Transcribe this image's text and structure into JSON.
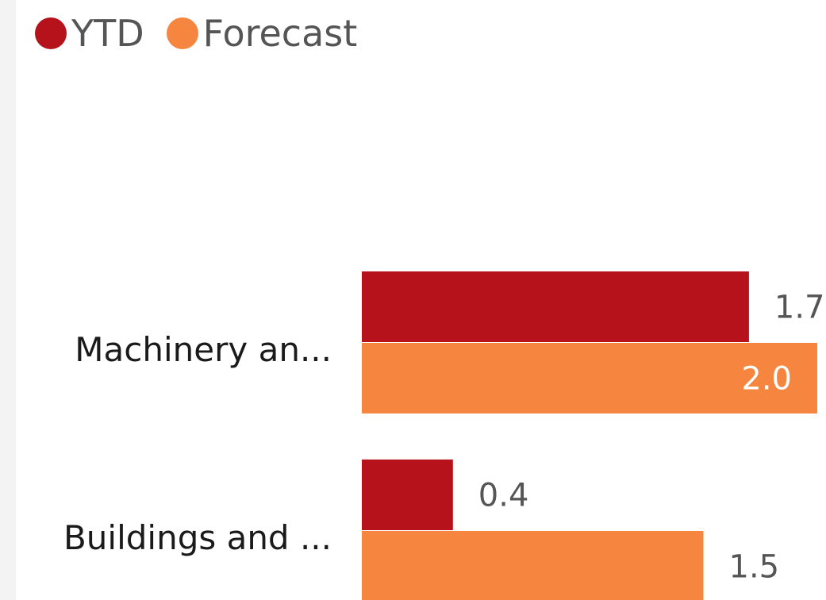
{
  "chart_data": {
    "type": "bar",
    "orientation": "horizontal",
    "categories": [
      "Machinery an...",
      "Buildings and ..."
    ],
    "series": [
      {
        "name": "YTD",
        "color": "#b5121b",
        "values": [
          1.7,
          0.4
        ]
      },
      {
        "name": "Forecast",
        "color": "#f5853f",
        "values": [
          2.0,
          1.5
        ]
      }
    ],
    "value_labels": [
      [
        "1.7",
        "0.4"
      ],
      [
        "2.0",
        "1.5"
      ]
    ],
    "xlim": [
      0,
      2.0
    ],
    "grid": false,
    "legend_position": "top-left"
  }
}
